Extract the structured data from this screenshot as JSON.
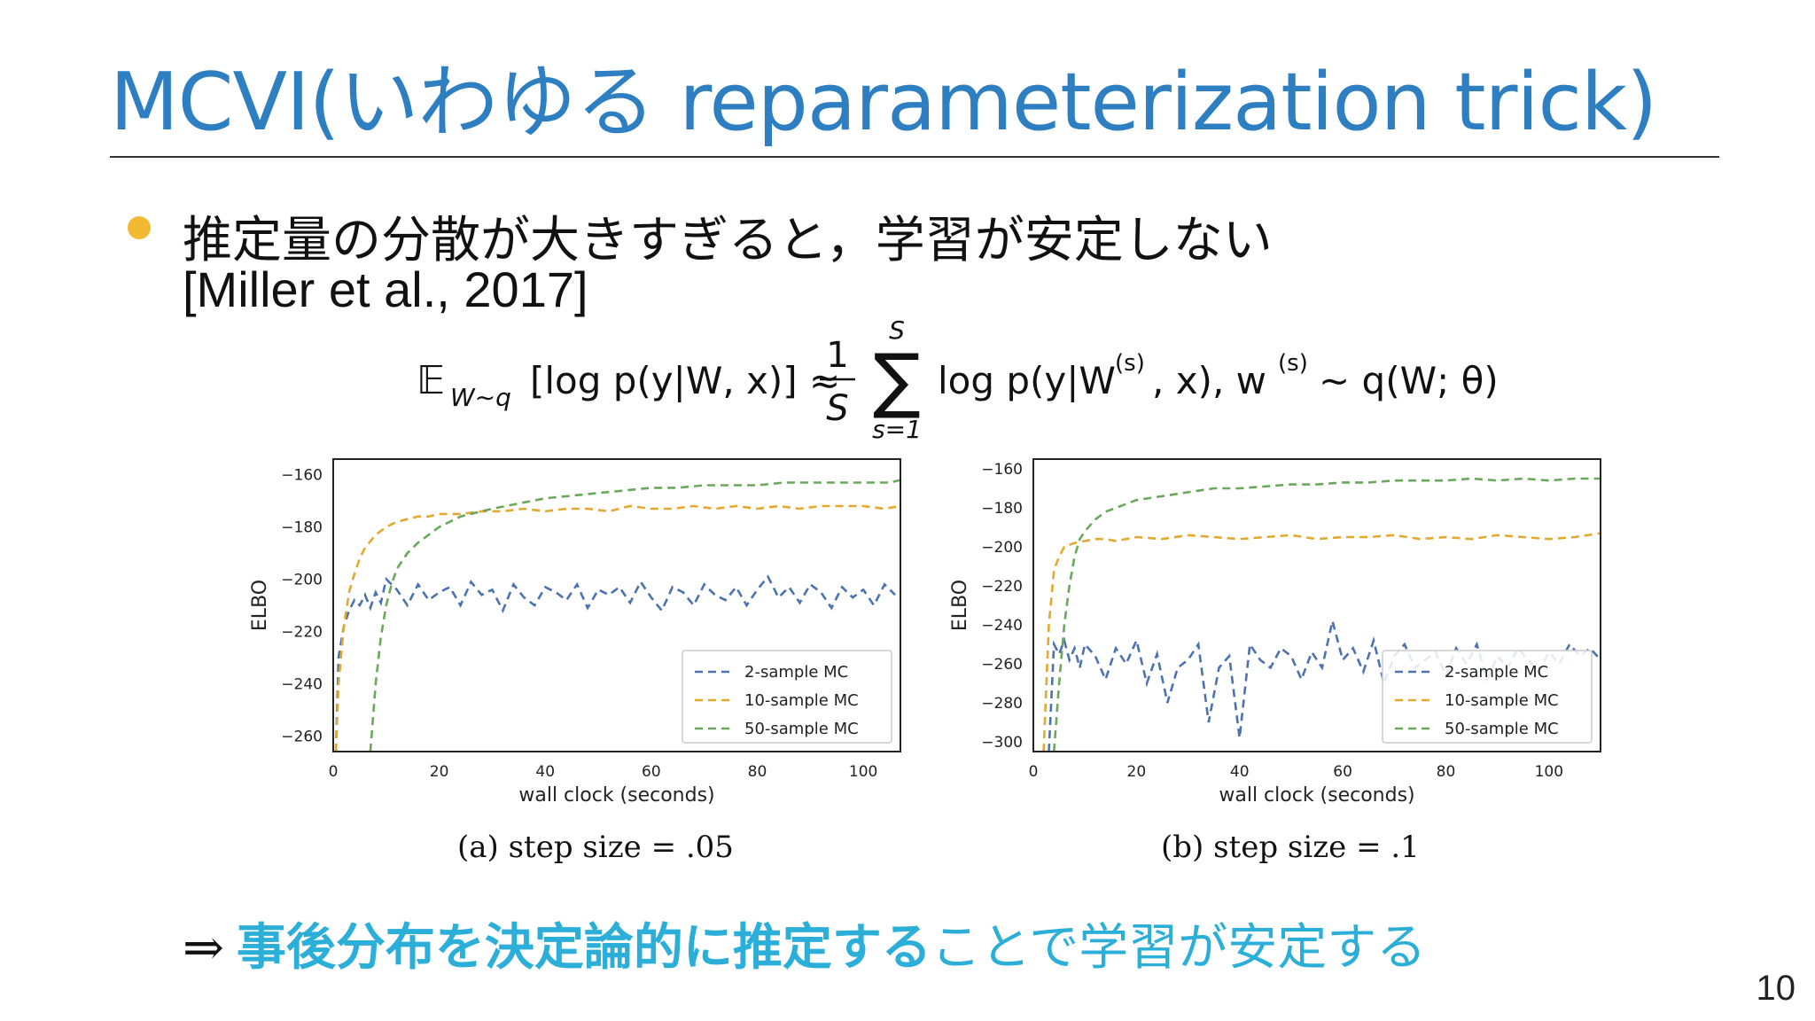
{
  "slide": {
    "title": "MCVI(いわゆる reparameterization trick)",
    "bullet_line1": "推定量の分散が大きすぎると，学習が安定しない",
    "bullet_line2": "[Miller et al., 2017]",
    "conclusion_arrow": "⇒",
    "conclusion_bold": "事後分布を決定論的に推定する",
    "conclusion_rest": "ことで学習が安定する",
    "page_number": "10"
  },
  "formula": {
    "E": "𝔼",
    "E_sub": "W∼q",
    "lhs": "[log p(y|W, x)] ≈",
    "frac_num": "1",
    "frac_den": "S",
    "sum_top": "S",
    "sum_bottom": "s=1",
    "sum_sign": "∑",
    "rhs_a": "log p(y|W",
    "rhs_sup1": "(s)",
    "rhs_b": ", x), w",
    "rhs_sup2": "(s)",
    "rhs_c": "∼ q(W; θ)"
  },
  "chart_data": [
    {
      "type": "line",
      "caption": "(a) step size = .05",
      "xlabel": "wall clock (seconds)",
      "ylabel": "ELBO",
      "xlim": [
        0,
        107
      ],
      "ylim": [
        -266,
        -154
      ],
      "xticks": [
        0,
        20,
        40,
        60,
        80,
        100
      ],
      "yticks": [
        -160,
        -180,
        -200,
        -220,
        -240,
        -260
      ],
      "legend_position": "lower-right",
      "series": [
        {
          "name": "2-sample MC",
          "color": "#4c72b0",
          "x": [
            0.5,
            1,
            2,
            3,
            4,
            5,
            6,
            7,
            8,
            9,
            10,
            12,
            14,
            16,
            18,
            20,
            22,
            24,
            26,
            28,
            30,
            32,
            34,
            36,
            38,
            40,
            42,
            44,
            46,
            48,
            50,
            52,
            54,
            56,
            58,
            60,
            62,
            64,
            66,
            68,
            70,
            72,
            74,
            76,
            78,
            80,
            82,
            84,
            86,
            88,
            90,
            92,
            94,
            96,
            98,
            100,
            102,
            104,
            106
          ],
          "y": [
            -266,
            -230,
            -218,
            -212,
            -208,
            -210,
            -206,
            -211,
            -205,
            -209,
            -200,
            -204,
            -210,
            -202,
            -208,
            -205,
            -203,
            -210,
            -201,
            -206,
            -204,
            -212,
            -202,
            -207,
            -210,
            -203,
            -205,
            -208,
            -202,
            -211,
            -204,
            -206,
            -203,
            -209,
            -201,
            -207,
            -212,
            -203,
            -205,
            -210,
            -202,
            -206,
            -208,
            -203,
            -210,
            -204,
            -199,
            -207,
            -203,
            -209,
            -202,
            -205,
            -211,
            -203,
            -207,
            -204,
            -210,
            -202,
            -206
          ]
        },
        {
          "name": "10-sample MC",
          "color": "#e3a92f",
          "x": [
            0.5,
            1,
            2,
            3,
            4,
            5,
            6,
            8,
            10,
            12,
            14,
            16,
            18,
            20,
            24,
            28,
            32,
            36,
            40,
            44,
            48,
            52,
            56,
            60,
            64,
            68,
            72,
            76,
            80,
            84,
            88,
            92,
            96,
            100,
            104,
            107
          ],
          "y": [
            -266,
            -240,
            -218,
            -205,
            -198,
            -192,
            -188,
            -183,
            -180,
            -178,
            -177,
            -176,
            -176,
            -175,
            -175,
            -174,
            -174,
            -173,
            -174,
            -173,
            -173,
            -174,
            -172,
            -173,
            -173,
            -172,
            -173,
            -172,
            -173,
            -172,
            -173,
            -172,
            -172,
            -172,
            -173,
            -172
          ]
        },
        {
          "name": "50-sample MC",
          "color": "#6aa85c",
          "x": [
            7,
            8,
            9,
            10,
            11,
            12,
            14,
            16,
            18,
            20,
            22,
            24,
            26,
            28,
            30,
            35,
            40,
            45,
            50,
            55,
            60,
            65,
            70,
            75,
            80,
            85,
            90,
            95,
            100,
            105,
            107
          ],
          "y": [
            -266,
            -240,
            -222,
            -210,
            -202,
            -196,
            -190,
            -186,
            -183,
            -180,
            -178,
            -176,
            -175,
            -174,
            -173,
            -171,
            -169,
            -168,
            -167,
            -166,
            -165,
            -165,
            -164,
            -164,
            -164,
            -163,
            -163,
            -163,
            -163,
            -163,
            -162
          ]
        }
      ]
    },
    {
      "type": "line",
      "caption": "(b) step size = .1",
      "xlabel": "wall clock (seconds)",
      "ylabel": "ELBO",
      "xlim": [
        0,
        110
      ],
      "ylim": [
        -305,
        -155
      ],
      "xticks": [
        0,
        20,
        40,
        60,
        80,
        100
      ],
      "yticks": [
        -160,
        -180,
        -200,
        -220,
        -240,
        -260,
        -280,
        -300
      ],
      "legend_position": "lower-right",
      "series": [
        {
          "name": "2-sample MC",
          "color": "#4c72b0",
          "x": [
            3,
            4,
            5,
            6,
            7,
            8,
            9,
            10,
            12,
            14,
            16,
            18,
            20,
            22,
            24,
            26,
            28,
            30,
            32,
            34,
            36,
            38,
            40,
            42,
            44,
            46,
            48,
            50,
            52,
            54,
            56,
            58,
            60,
            62,
            64,
            66,
            68,
            70,
            72,
            74,
            76,
            78,
            80,
            82,
            84,
            86,
            88,
            90,
            92,
            94,
            96,
            98,
            100,
            102,
            104,
            106,
            108,
            110
          ],
          "y": [
            -305,
            -250,
            -255,
            -248,
            -258,
            -252,
            -262,
            -250,
            -256,
            -268,
            -252,
            -260,
            -248,
            -270,
            -255,
            -280,
            -262,
            -258,
            -250,
            -290,
            -262,
            -256,
            -298,
            -250,
            -258,
            -262,
            -252,
            -256,
            -268,
            -254,
            -262,
            -238,
            -258,
            -252,
            -264,
            -248,
            -270,
            -256,
            -250,
            -262,
            -258,
            -254,
            -266,
            -252,
            -260,
            -250,
            -268,
            -256,
            -262,
            -252,
            -258,
            -264,
            -254,
            -260,
            -250,
            -256,
            -252,
            -258
          ]
        },
        {
          "name": "10-sample MC",
          "color": "#e3a92f",
          "x": [
            2,
            3,
            4,
            5,
            6,
            8,
            10,
            12,
            14,
            16,
            18,
            20,
            25,
            30,
            35,
            40,
            45,
            50,
            55,
            60,
            65,
            70,
            75,
            80,
            85,
            90,
            95,
            100,
            105,
            110
          ],
          "y": [
            -305,
            -240,
            -212,
            -205,
            -200,
            -198,
            -197,
            -196,
            -196,
            -197,
            -196,
            -195,
            -196,
            -194,
            -195,
            -196,
            -195,
            -194,
            -196,
            -195,
            -195,
            -194,
            -196,
            -195,
            -196,
            -194,
            -195,
            -196,
            -195,
            -193
          ]
        },
        {
          "name": "50-sample MC",
          "color": "#6aa85c",
          "x": [
            4,
            5,
            6,
            7,
            8,
            9,
            10,
            12,
            14,
            16,
            18,
            20,
            25,
            30,
            35,
            40,
            45,
            50,
            55,
            60,
            65,
            70,
            75,
            80,
            85,
            90,
            95,
            100,
            105,
            110
          ],
          "y": [
            -305,
            -270,
            -240,
            -220,
            -205,
            -196,
            -192,
            -186,
            -182,
            -180,
            -178,
            -176,
            -174,
            -172,
            -170,
            -170,
            -169,
            -168,
            -168,
            -167,
            -167,
            -166,
            -166,
            -166,
            -165,
            -166,
            -165,
            -166,
            -165,
            -165
          ]
        }
      ]
    }
  ]
}
